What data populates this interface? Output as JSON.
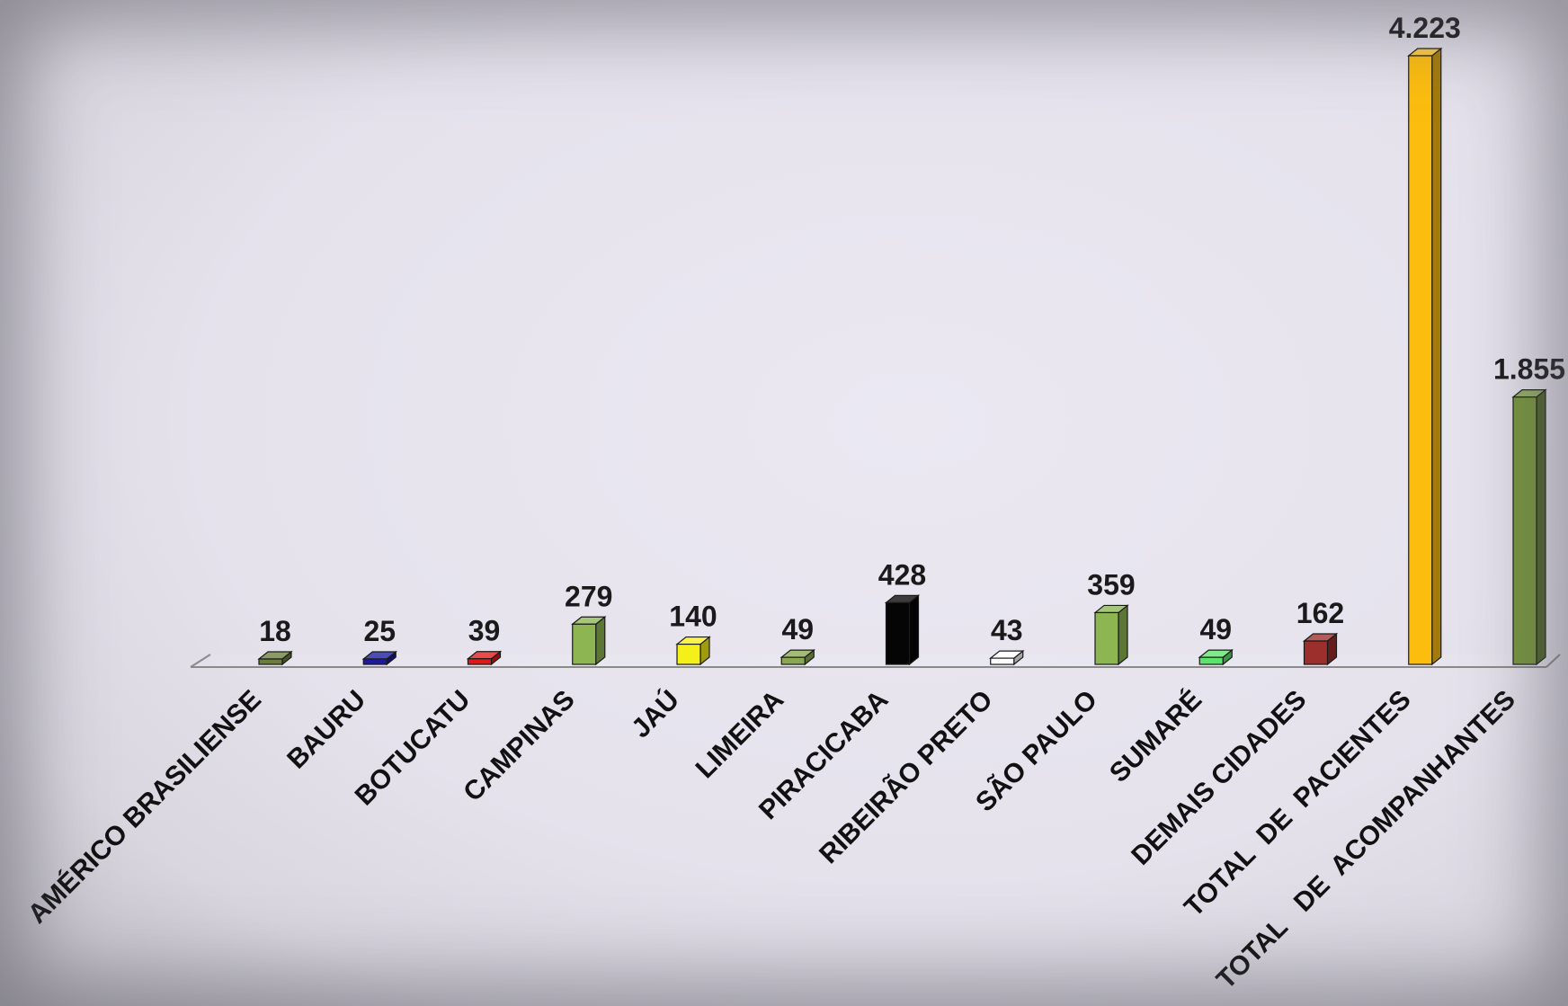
{
  "chart_data": {
    "type": "bar",
    "title": "",
    "xlabel": "",
    "ylabel": "",
    "ylim": [
      0,
      4223
    ],
    "grid": false,
    "legend": "none",
    "categories": [
      "AMÉRICO BRASILIENSE",
      "BAURU",
      "BOTUCATU",
      "CAMPINAS",
      "JAÚ",
      "LIMEIRA",
      "PIRACICABA",
      "RIBEIRÃO PRETO",
      "SÃO PAULO",
      "SUMARÉ",
      "DEMAIS CIDADES",
      "TOTAL  DE  PACIENTES",
      "TOTAL   DE  ACOMPANHANTES"
    ],
    "values": [
      18,
      25,
      39,
      279,
      140,
      49,
      428,
      43,
      359,
      49,
      162,
      4223,
      1855
    ],
    "data_labels": [
      "18",
      "25",
      "39",
      "279",
      "140",
      "49",
      "428",
      "43",
      "359",
      "49",
      "162",
      "4.223",
      "1.855"
    ],
    "colors": [
      "#6b7d3a",
      "#1a1a9c",
      "#e01818",
      "#8db653",
      "#f6f01a",
      "#8aa852",
      "#050505",
      "#ffffff",
      "#8db653",
      "#5ee36a",
      "#9c2e2c",
      "#fdbd0f",
      "#77973c"
    ]
  }
}
